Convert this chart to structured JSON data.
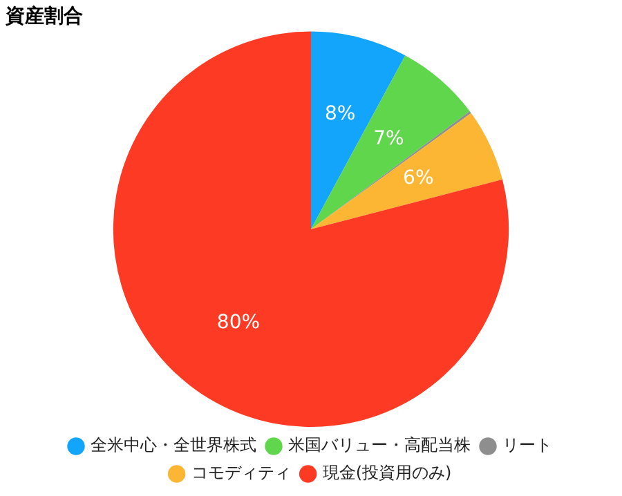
{
  "chart_data": {
    "type": "pie",
    "title": "資産割合",
    "categories": [
      "全米中心・全世界株式",
      "米国バリュー・高配当株",
      "リート",
      "コモディティ",
      "現金(投資用のみ)"
    ],
    "values": [
      8,
      7,
      0.2,
      6,
      80
    ],
    "value_labels": [
      "8%",
      "7%",
      null,
      "6%",
      "80%"
    ],
    "colors": [
      "#13a4fb",
      "#5fd64b",
      "#8e8e8e",
      "#fdb633",
      "#fd3a23"
    ],
    "legend": "bottom"
  }
}
